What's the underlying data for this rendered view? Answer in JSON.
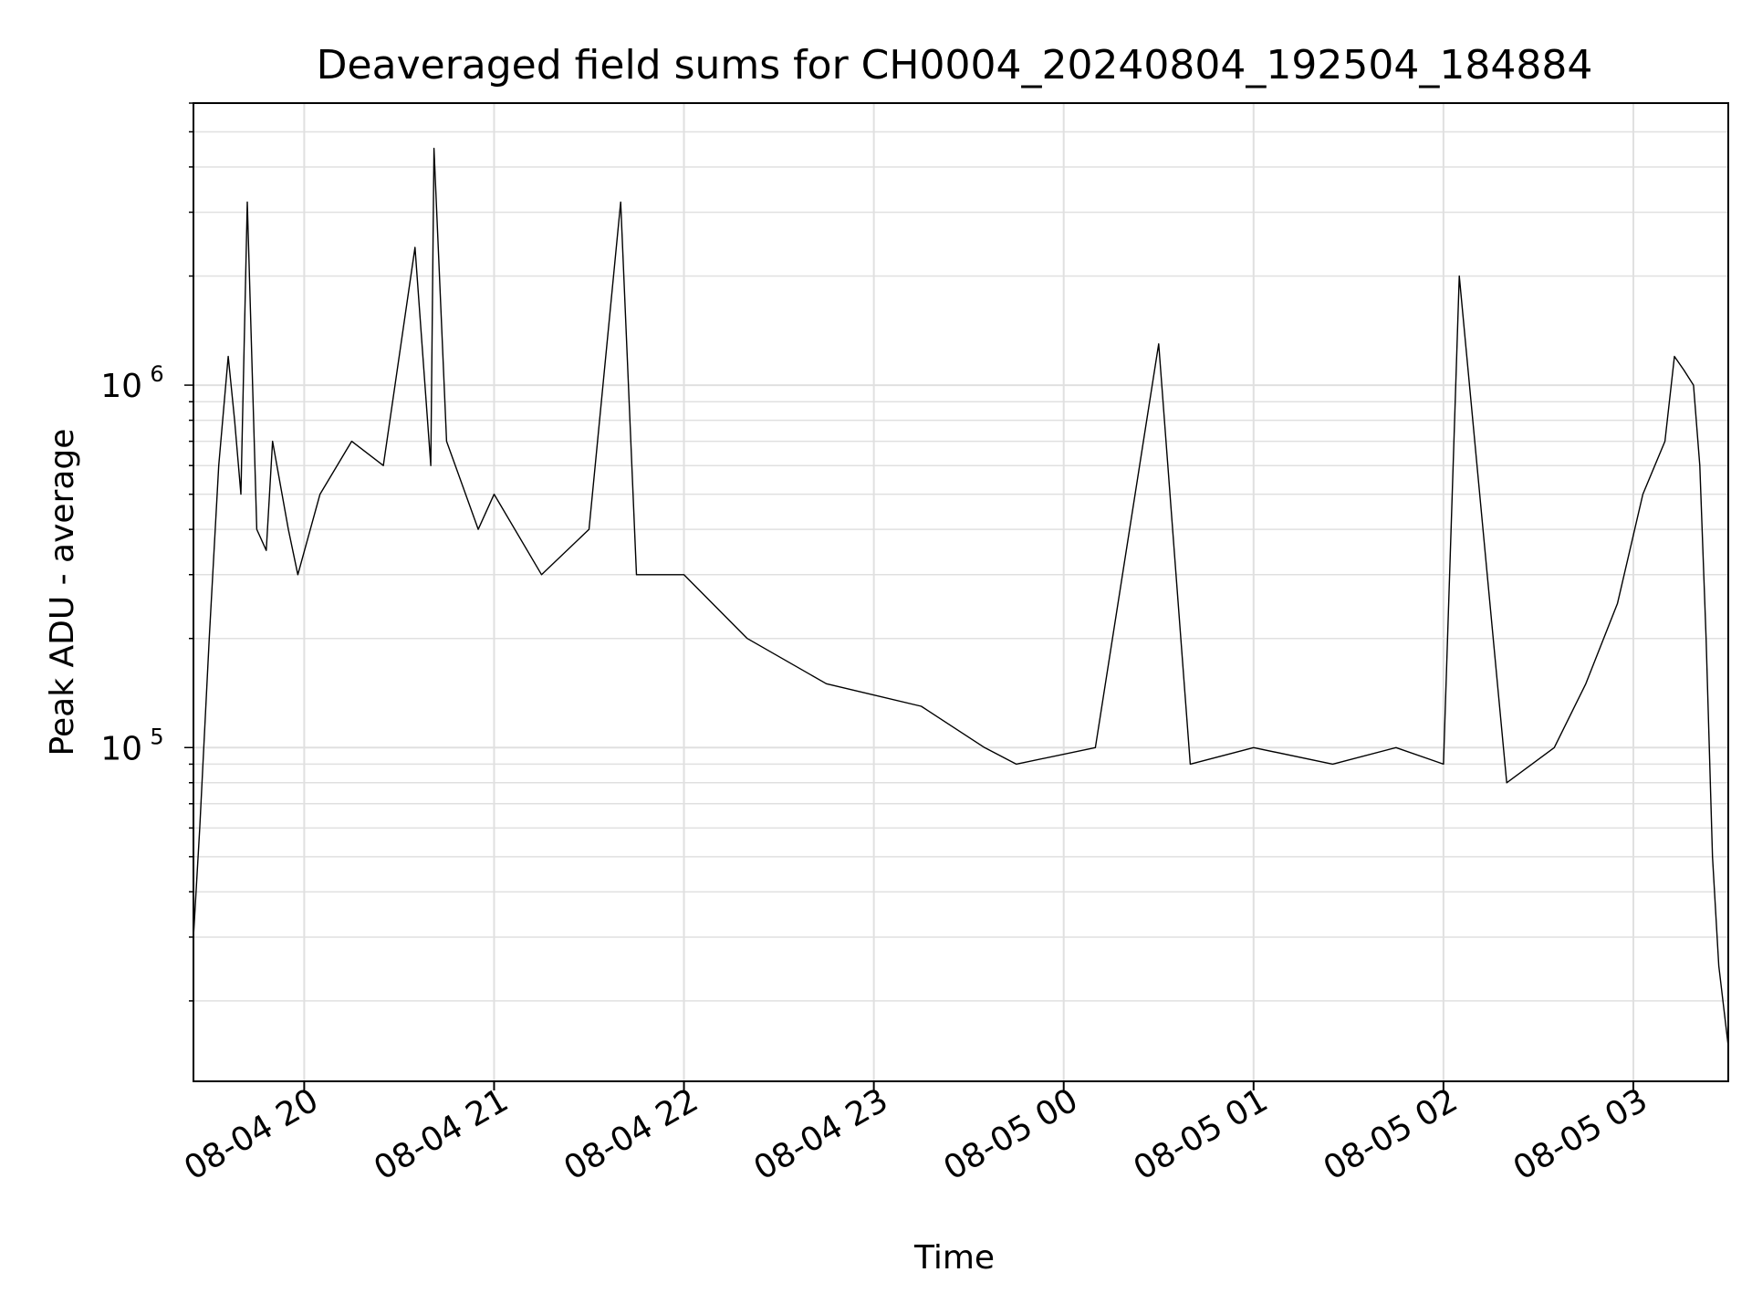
{
  "chart_data": {
    "type": "line",
    "title": "Deaveraged field sums for CH0004_20240804_192504_184884",
    "xlabel": "Time",
    "ylabel": "Peak ADU - average",
    "yscale": "log",
    "grid": true,
    "legend": "none",
    "xlim": [
      "2024-08-04 19:25",
      "2024-08-05 03:30"
    ],
    "ylim": [
      12000,
      6000000
    ],
    "x_ticks": [
      "08-04 20",
      "08-04 21",
      "08-04 22",
      "08-04 23",
      "08-05 00",
      "08-05 01",
      "08-05 02",
      "08-05 03"
    ],
    "x_tick_times": [
      "2024-08-04 20:00",
      "2024-08-04 21:00",
      "2024-08-04 22:00",
      "2024-08-04 23:00",
      "2024-08-05 00:00",
      "2024-08-05 01:00",
      "2024-08-05 02:00",
      "2024-08-05 03:00"
    ],
    "y_ticks": [
      {
        "value": 100000,
        "base": "10",
        "exp": "5"
      },
      {
        "value": 1000000,
        "base": "10",
        "exp": "6"
      }
    ],
    "series": [
      {
        "color": "#000000",
        "x": [
          "2024-08-04 19:25",
          "2024-08-04 19:27",
          "2024-08-04 19:30",
          "2024-08-04 19:33",
          "2024-08-04 19:36",
          "2024-08-04 19:38",
          "2024-08-04 19:40",
          "2024-08-04 19:42",
          "2024-08-04 19:45",
          "2024-08-04 19:48",
          "2024-08-04 19:50",
          "2024-08-04 19:53",
          "2024-08-04 19:55",
          "2024-08-04 19:58",
          "2024-08-04 20:05",
          "2024-08-04 20:15",
          "2024-08-04 20:25",
          "2024-08-04 20:35",
          "2024-08-04 20:40",
          "2024-08-04 20:41",
          "2024-08-04 20:45",
          "2024-08-04 20:55",
          "2024-08-04 21:00",
          "2024-08-04 21:15",
          "2024-08-04 21:30",
          "2024-08-04 21:40",
          "2024-08-04 21:45",
          "2024-08-04 22:00",
          "2024-08-04 22:20",
          "2024-08-04 22:45",
          "2024-08-04 23:15",
          "2024-08-04 23:35",
          "2024-08-04 23:45",
          "2024-08-05 00:10",
          "2024-08-05 00:30",
          "2024-08-05 00:40",
          "2024-08-05 01:00",
          "2024-08-05 01:25",
          "2024-08-05 01:45",
          "2024-08-05 02:00",
          "2024-08-05 02:05",
          "2024-08-05 02:20",
          "2024-08-05 02:35",
          "2024-08-05 02:45",
          "2024-08-05 02:55",
          "2024-08-05 03:03",
          "2024-08-05 03:10",
          "2024-08-05 03:13",
          "2024-08-05 03:16",
          "2024-08-05 03:19",
          "2024-08-05 03:21",
          "2024-08-05 03:23",
          "2024-08-05 03:25",
          "2024-08-05 03:27",
          "2024-08-05 03:30"
        ],
        "y": [
          30000,
          60000,
          200000,
          600000,
          1200000,
          800000,
          500000,
          3200000,
          400000,
          350000,
          700000,
          500000,
          400000,
          300000,
          500000,
          700000,
          600000,
          2400000,
          600000,
          4500000,
          700000,
          400000,
          500000,
          300000,
          400000,
          3200000,
          300000,
          300000,
          200000,
          150000,
          130000,
          100000,
          90000,
          100000,
          1300000,
          90000,
          100000,
          90000,
          100000,
          90000,
          2000000,
          80000,
          100000,
          150000,
          250000,
          500000,
          700000,
          1200000,
          1100000,
          1000000,
          600000,
          200000,
          50000,
          25000,
          15000
        ]
      }
    ]
  }
}
